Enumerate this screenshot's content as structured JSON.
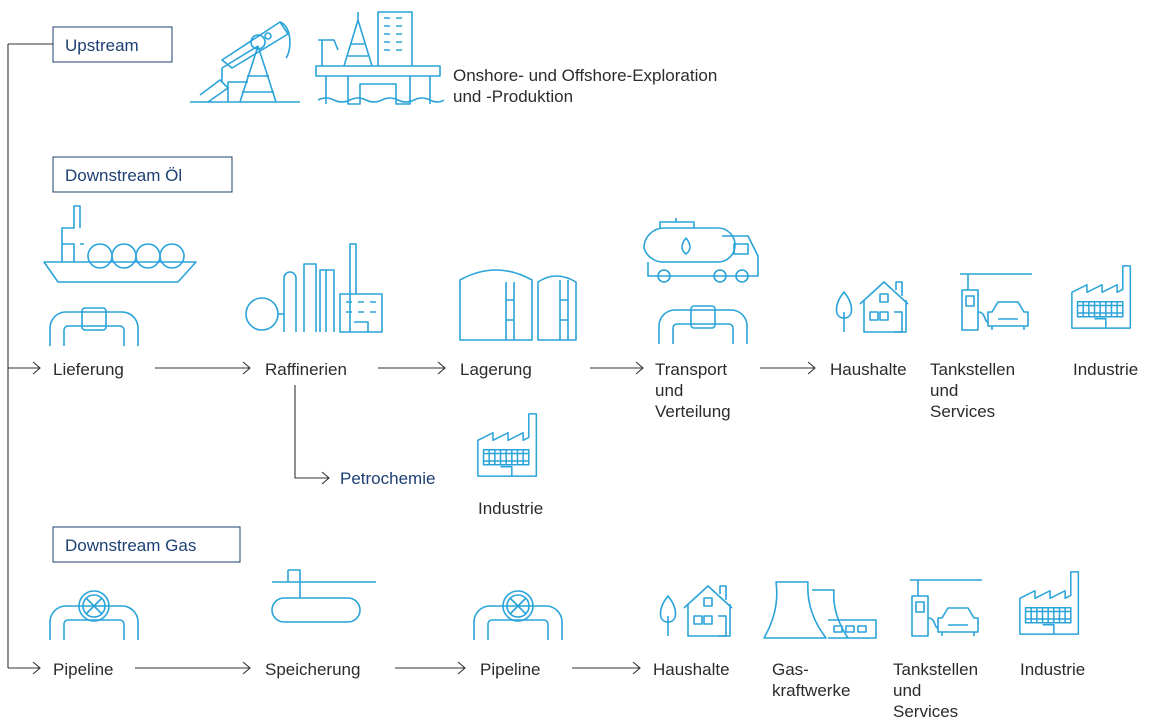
{
  "upstream": {
    "label": "Upstream",
    "description": [
      "Onshore- und Offshore-Exploration",
      "und -Produktion"
    ]
  },
  "downstream_oil": {
    "label": "Downstream Öl",
    "steps": [
      [
        "Lieferung"
      ],
      [
        "Raffinerien"
      ],
      [
        "Lagerung"
      ],
      [
        "Transport",
        "und",
        "Verteilung"
      ],
      [
        "Haushalte"
      ],
      [
        "Tankstellen",
        "und",
        "Services"
      ],
      [
        "Industrie"
      ]
    ],
    "branch": {
      "label": "Petrochemie",
      "target": [
        "Industrie"
      ]
    }
  },
  "downstream_gas": {
    "label": "Downstream Gas",
    "steps": [
      [
        "Pipeline"
      ],
      [
        "Speicherung"
      ],
      [
        "Pipeline"
      ],
      [
        "Haushalte"
      ],
      [
        "Gas-",
        "kraftwerke"
      ],
      [
        "Tankstellen",
        "und",
        "Services"
      ],
      [
        "Industrie"
      ]
    ]
  }
}
